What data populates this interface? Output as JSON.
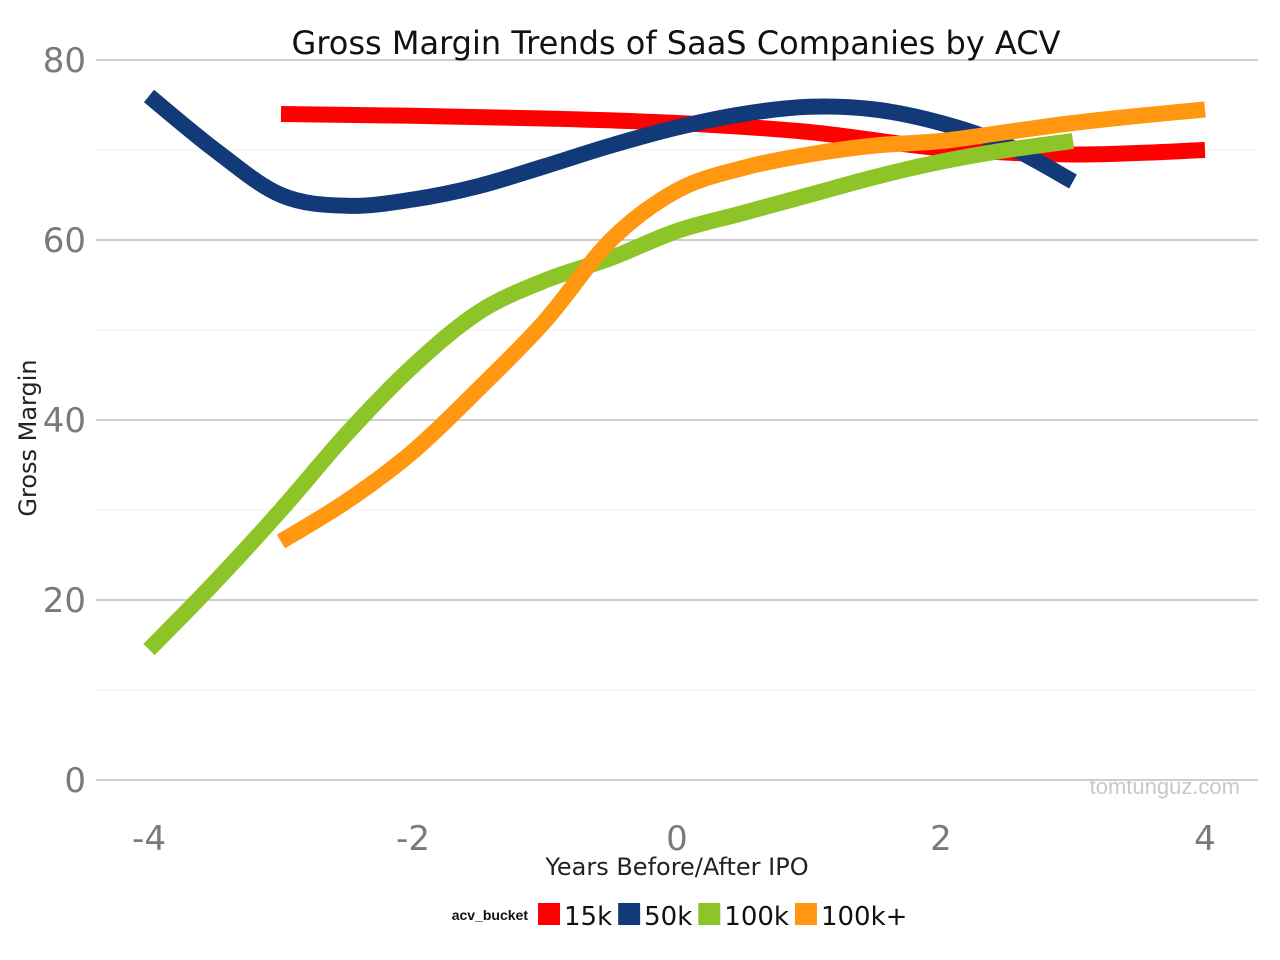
{
  "watermark": "tomtunguz.com",
  "chart_data": {
    "type": "line",
    "title": "Gross Margin Trends of SaaS Companies by ACV",
    "xlabel": "Years Before/After IPO",
    "ylabel": "Gross Margin",
    "xlim": [
      -4.2,
      4.2
    ],
    "ylim": [
      0,
      80
    ],
    "x_ticks": [
      -4,
      -2,
      0,
      2,
      4
    ],
    "x_tick_labels": [
      "-4",
      "-2",
      "0",
      "2",
      "4"
    ],
    "y_ticks": [
      0,
      20,
      40,
      60,
      80
    ],
    "y_tick_labels": [
      "0",
      "20",
      "40",
      "60",
      "80"
    ],
    "grid": true,
    "legend": {
      "title": "acv_bucket",
      "position": "bottom"
    },
    "series": [
      {
        "name": "15k",
        "color": "#ff0000",
        "x": [
          -3,
          -2,
          -1,
          0,
          1,
          2,
          3,
          4
        ],
        "y": [
          74,
          73.8,
          73.5,
          73,
          72,
          70.2,
          69.5,
          70
        ]
      },
      {
        "name": "50k",
        "color": "#123a78",
        "x": [
          -4,
          -3.5,
          -3,
          -2.5,
          -2,
          -1.5,
          -1,
          -0.5,
          0,
          0.5,
          1,
          1.5,
          2,
          2.5,
          3
        ],
        "y": [
          76,
          70,
          65,
          63.8,
          64.5,
          66,
          68.2,
          70.5,
          72.5,
          74,
          74.8,
          74.5,
          73,
          70.5,
          66.5
        ]
      },
      {
        "name": "100k",
        "color": "#8dc428",
        "x": [
          -4,
          -3.5,
          -3,
          -2.5,
          -2,
          -1.5,
          -1,
          -0.5,
          0,
          0.5,
          1,
          1.5,
          2,
          2.5,
          3
        ],
        "y": [
          14.5,
          22,
          30,
          38.5,
          46,
          52,
          55.5,
          58,
          61,
          63,
          65,
          67,
          68.7,
          70,
          71
        ]
      },
      {
        "name": "100k+",
        "color": "#ff9810",
        "x": [
          -3,
          -2.5,
          -2,
          -1.5,
          -1,
          -0.5,
          0,
          0.5,
          1,
          1.5,
          2,
          2.5,
          3,
          3.5,
          4
        ],
        "y": [
          26.5,
          31,
          36.5,
          43.5,
          51,
          60,
          65.5,
          68,
          69.5,
          70.5,
          71,
          72,
          73,
          73.8,
          74.5
        ]
      }
    ]
  }
}
